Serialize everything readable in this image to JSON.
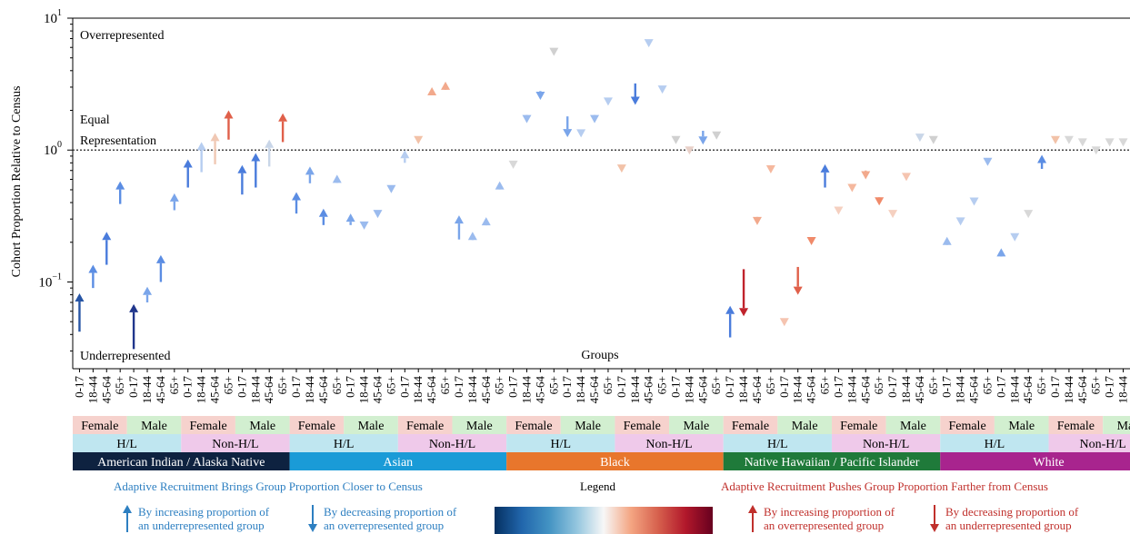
{
  "chart_data": {
    "type": "scatter",
    "ylabel": "Cohort Proportion Relative to Census",
    "xlabel": "Groups",
    "yscale": "log",
    "ylim": [
      0.022,
      10
    ],
    "yticks": [
      {
        "value": 10,
        "base": "10",
        "exp": "1"
      },
      {
        "value": 1,
        "base": "10",
        "exp": "0"
      },
      {
        "value": 0.1,
        "base": "10",
        "exp": "−1"
      }
    ],
    "reference_line": {
      "value": 1,
      "style": "dotted"
    },
    "annotations": {
      "top": "Overrepresented",
      "equal_line1": "Equal",
      "equal_line2": "Representation",
      "bottom": "Underrepresented"
    },
    "age_labels": [
      "0-17",
      "18-44",
      "45-64",
      "65+"
    ],
    "sex_labels": [
      "Female",
      "Male"
    ],
    "ethnicity_labels": [
      "H/L",
      "Non-H/L"
    ],
    "races": [
      {
        "name": "American Indian / Alaska Native",
        "color": "#0e2240"
      },
      {
        "name": "Asian",
        "color": "#1a9bd7"
      },
      {
        "name": "Black",
        "color": "#e8762c"
      },
      {
        "name": "Native Hawaiian / Pacific Islander",
        "color": "#1f7a3a"
      },
      {
        "name": "White",
        "color": "#a8248e"
      }
    ],
    "points": [
      {
        "from": 0.042,
        "to": 0.082,
        "color": "#2755a5"
      },
      {
        "from": 0.09,
        "to": 0.135,
        "color": "#5b8de3"
      },
      {
        "from": 0.135,
        "to": 0.24,
        "color": "#4a7cdc"
      },
      {
        "from": 0.39,
        "to": 0.58,
        "color": "#5b8de3"
      },
      {
        "from": 0.031,
        "to": 0.068,
        "color": "#20368c"
      },
      {
        "from": 0.07,
        "to": 0.092,
        "color": "#7aa5ea"
      },
      {
        "from": 0.1,
        "to": 0.16,
        "color": "#5b8de3"
      },
      {
        "from": 0.35,
        "to": 0.47,
        "color": "#7aa5ea"
      },
      {
        "from": 0.52,
        "to": 0.85,
        "color": "#4a7cdc"
      },
      {
        "from": 0.68,
        "to": 1.15,
        "color": "#b6cdf0"
      },
      {
        "from": 0.78,
        "to": 1.35,
        "color": "#f0c8b4"
      },
      {
        "from": 1.2,
        "to": 2.0,
        "color": "#e0604a"
      },
      {
        "from": 0.46,
        "to": 0.77,
        "color": "#4a7cdc"
      },
      {
        "from": 0.52,
        "to": 0.95,
        "color": "#4a7cdc"
      },
      {
        "from": 0.75,
        "to": 1.2,
        "color": "#c9d6e8"
      },
      {
        "from": 1.15,
        "to": 1.9,
        "color": "#e0604a"
      },
      {
        "from": 0.33,
        "to": 0.48,
        "color": "#5b8de3"
      },
      {
        "from": 0.56,
        "to": 0.75,
        "color": "#7aa5ea"
      },
      {
        "from": 0.27,
        "to": 0.36,
        "color": "#5b8de3"
      },
      {
        "from": 0.6,
        "to": 0.65,
        "color": "#9bbbee"
      },
      {
        "from": 0.27,
        "to": 0.33,
        "color": "#7aa5ea"
      },
      {
        "from": 0.26,
        "to": 0.27,
        "color": "#9bbbee"
      },
      {
        "from": 0.32,
        "to": 0.33,
        "color": "#9bbbee"
      },
      {
        "from": 0.49,
        "to": 0.51,
        "color": "#9bbbee"
      },
      {
        "from": 0.8,
        "to": 1.0,
        "color": "#b6cdf0"
      },
      {
        "from": 1.15,
        "to": 1.2,
        "color": "#f2c2a8"
      },
      {
        "from": 2.6,
        "to": 3.0,
        "color": "#f2a98c"
      },
      {
        "from": 2.9,
        "to": 3.3,
        "color": "#f2a98c"
      },
      {
        "from": 0.21,
        "to": 0.32,
        "color": "#7aa5ea"
      },
      {
        "from": 0.21,
        "to": 0.24,
        "color": "#9bbbee"
      },
      {
        "from": 0.28,
        "to": 0.31,
        "color": "#9bbbee"
      },
      {
        "from": 0.55,
        "to": 0.58,
        "color": "#9bbbee"
      },
      {
        "from": 0.78,
        "to": 0.78,
        "color": "#d8d8d8"
      },
      {
        "from": 1.75,
        "to": 1.6,
        "color": "#9bbbee"
      },
      {
        "from": 2.8,
        "to": 2.4,
        "color": "#7aa5ea"
      },
      {
        "from": 5.6,
        "to": 5.6,
        "color": "#d0d0d0"
      },
      {
        "from": 1.8,
        "to": 1.25,
        "color": "#7aa5ea"
      },
      {
        "from": 1.4,
        "to": 1.35,
        "color": "#b6cdf0"
      },
      {
        "from": 1.7,
        "to": 1.6,
        "color": "#9bbbee"
      },
      {
        "from": 2.4,
        "to": 2.35,
        "color": "#b6cdf0"
      },
      {
        "from": 0.73,
        "to": 0.73,
        "color": "#f2c2a8"
      },
      {
        "from": 3.2,
        "to": 2.2,
        "color": "#4a7cdc"
      },
      {
        "from": 6.5,
        "to": 6.5,
        "color": "#b6cdf0"
      },
      {
        "from": 2.9,
        "to": 2.9,
        "color": "#b6cdf0"
      },
      {
        "from": 1.2,
        "to": 1.2,
        "color": "#d0d0d0"
      },
      {
        "from": 1.0,
        "to": 1.0,
        "color": "#e8d0c8"
      },
      {
        "from": 1.4,
        "to": 1.1,
        "color": "#7aa5ea"
      },
      {
        "from": 1.3,
        "to": 1.3,
        "color": "#d0d0d0"
      },
      {
        "from": 0.038,
        "to": 0.066,
        "color": "#4a7cdc"
      },
      {
        "from": 0.125,
        "to": 0.055,
        "color": "#c0232c"
      },
      {
        "from": 0.31,
        "to": 0.27,
        "color": "#f2a98c"
      },
      {
        "from": 0.72,
        "to": 0.72,
        "color": "#f5b89e"
      },
      {
        "from": 0.05,
        "to": 0.05,
        "color": "#f5c4b0"
      },
      {
        "from": 0.13,
        "to": 0.08,
        "color": "#e0604a"
      },
      {
        "from": 0.21,
        "to": 0.19,
        "color": "#f08a6a"
      },
      {
        "from": 0.52,
        "to": 0.78,
        "color": "#4a7cdc"
      },
      {
        "from": 0.35,
        "to": 0.35,
        "color": "#f5d0c0"
      },
      {
        "from": 0.52,
        "to": 0.52,
        "color": "#f5b89e"
      },
      {
        "from": 0.7,
        "to": 0.6,
        "color": "#f2a98c"
      },
      {
        "from": 0.42,
        "to": 0.38,
        "color": "#f08a6a"
      },
      {
        "from": 0.33,
        "to": 0.33,
        "color": "#f5d0c0"
      },
      {
        "from": 0.63,
        "to": 0.63,
        "color": "#f5c4b0"
      },
      {
        "from": 1.25,
        "to": 1.25,
        "color": "#c9d6e8"
      },
      {
        "from": 1.2,
        "to": 1.2,
        "color": "#d0d0d0"
      },
      {
        "from": 0.2,
        "to": 0.22,
        "color": "#9bbbee"
      },
      {
        "from": 0.29,
        "to": 0.29,
        "color": "#b6cdf0"
      },
      {
        "from": 0.4,
        "to": 0.41,
        "color": "#b6cdf0"
      },
      {
        "from": 0.82,
        "to": 0.82,
        "color": "#9bbbee"
      },
      {
        "from": 0.16,
        "to": 0.18,
        "color": "#7aa5ea"
      },
      {
        "from": 0.21,
        "to": 0.22,
        "color": "#b6cdf0"
      },
      {
        "from": 0.33,
        "to": 0.33,
        "color": "#d8d8d8"
      },
      {
        "from": 0.72,
        "to": 0.92,
        "color": "#5b8de3"
      },
      {
        "from": 1.2,
        "to": 1.2,
        "color": "#f2c2a8"
      },
      {
        "from": 1.2,
        "to": 1.2,
        "color": "#d8d8d8"
      },
      {
        "from": 1.15,
        "to": 1.15,
        "color": "#d8d8d8"
      },
      {
        "from": 1.0,
        "to": 1.0,
        "color": "#d8d8d8"
      },
      {
        "from": 1.15,
        "to": 1.15,
        "color": "#d8d8d8"
      },
      {
        "from": 1.15,
        "to": 1.15,
        "color": "#d8d8d8"
      }
    ],
    "grid": false,
    "legend": {
      "left_title": "Adaptive Recruitment Brings Group Proportion Closer to Census",
      "center_title": "Legend",
      "right_title": "Adaptive Recruitment Pushes Group Proportion Farther from Census",
      "items": [
        {
          "line1": "By increasing proportion of",
          "line2": "an underrepresented group",
          "color": "#2d7fc1",
          "dir": "up"
        },
        {
          "line1": "By decreasing proportion of",
          "line2": "an overrepresented group",
          "color": "#2d7fc1",
          "dir": "down"
        },
        {
          "line1": "By increasing proportion of",
          "line2": "an overrepresented group",
          "color": "#c0302c",
          "dir": "up"
        },
        {
          "line1": "By decreasing proportion of",
          "line2": "an underrepresented group",
          "color": "#c0302c",
          "dir": "down"
        }
      ],
      "left_title_color": "#2d7fc1",
      "right_title_color": "#c0302c"
    },
    "band_colors": {
      "female": "#f6d2cd",
      "male": "#d2efd0",
      "hl": "#bfe6f0",
      "nonhl": "#efc9ea"
    }
  }
}
